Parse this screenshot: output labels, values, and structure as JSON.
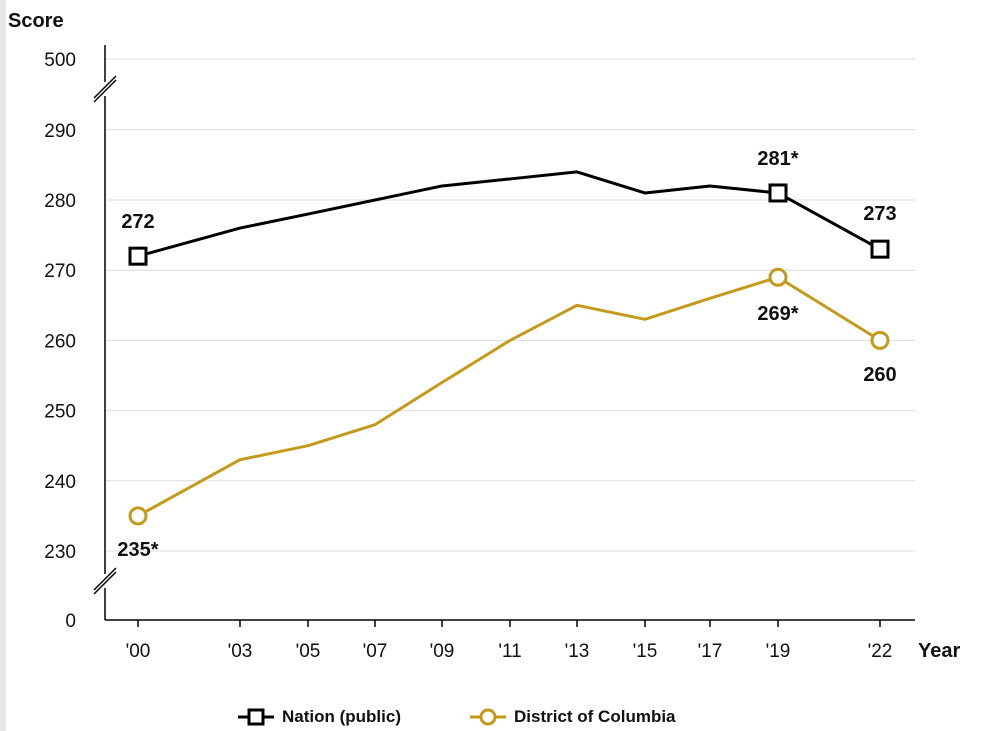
{
  "chart_data": {
    "type": "line",
    "y_axis_title": "Score",
    "x_axis_title": "Year",
    "x": [
      "'00",
      "'03",
      "'05",
      "'07",
      "'09",
      "'11",
      "'13",
      "'15",
      "'17",
      "'19",
      "'22"
    ],
    "y_ticks": [
      "0",
      "230",
      "240",
      "250",
      "260",
      "270",
      "280",
      "290",
      "500"
    ],
    "axis_breaks": [
      "between 0 and 230",
      "between 290 and 500"
    ],
    "series": [
      {
        "name": "Nation (public)",
        "color": "#000000",
        "marker": "square",
        "values": [
          272,
          276,
          278,
          280,
          282,
          283,
          284,
          281,
          282,
          281,
          273
        ],
        "marked_points": [
          "'00",
          "'19",
          "'22"
        ],
        "data_labels": {
          "'00": "272",
          "'19": "281*",
          "'22": "273"
        }
      },
      {
        "name": "District of Columbia",
        "color": "#c49a1a",
        "marker": "circle",
        "values": [
          235,
          243,
          245,
          248,
          254,
          260,
          265,
          263,
          266,
          269,
          260
        ],
        "marked_points": [
          "'00",
          "'19",
          "'22"
        ],
        "data_labels": {
          "'00": "235*",
          "'19": "269*",
          "'22": "260"
        }
      }
    ],
    "grid": true,
    "legend": "bottom"
  }
}
